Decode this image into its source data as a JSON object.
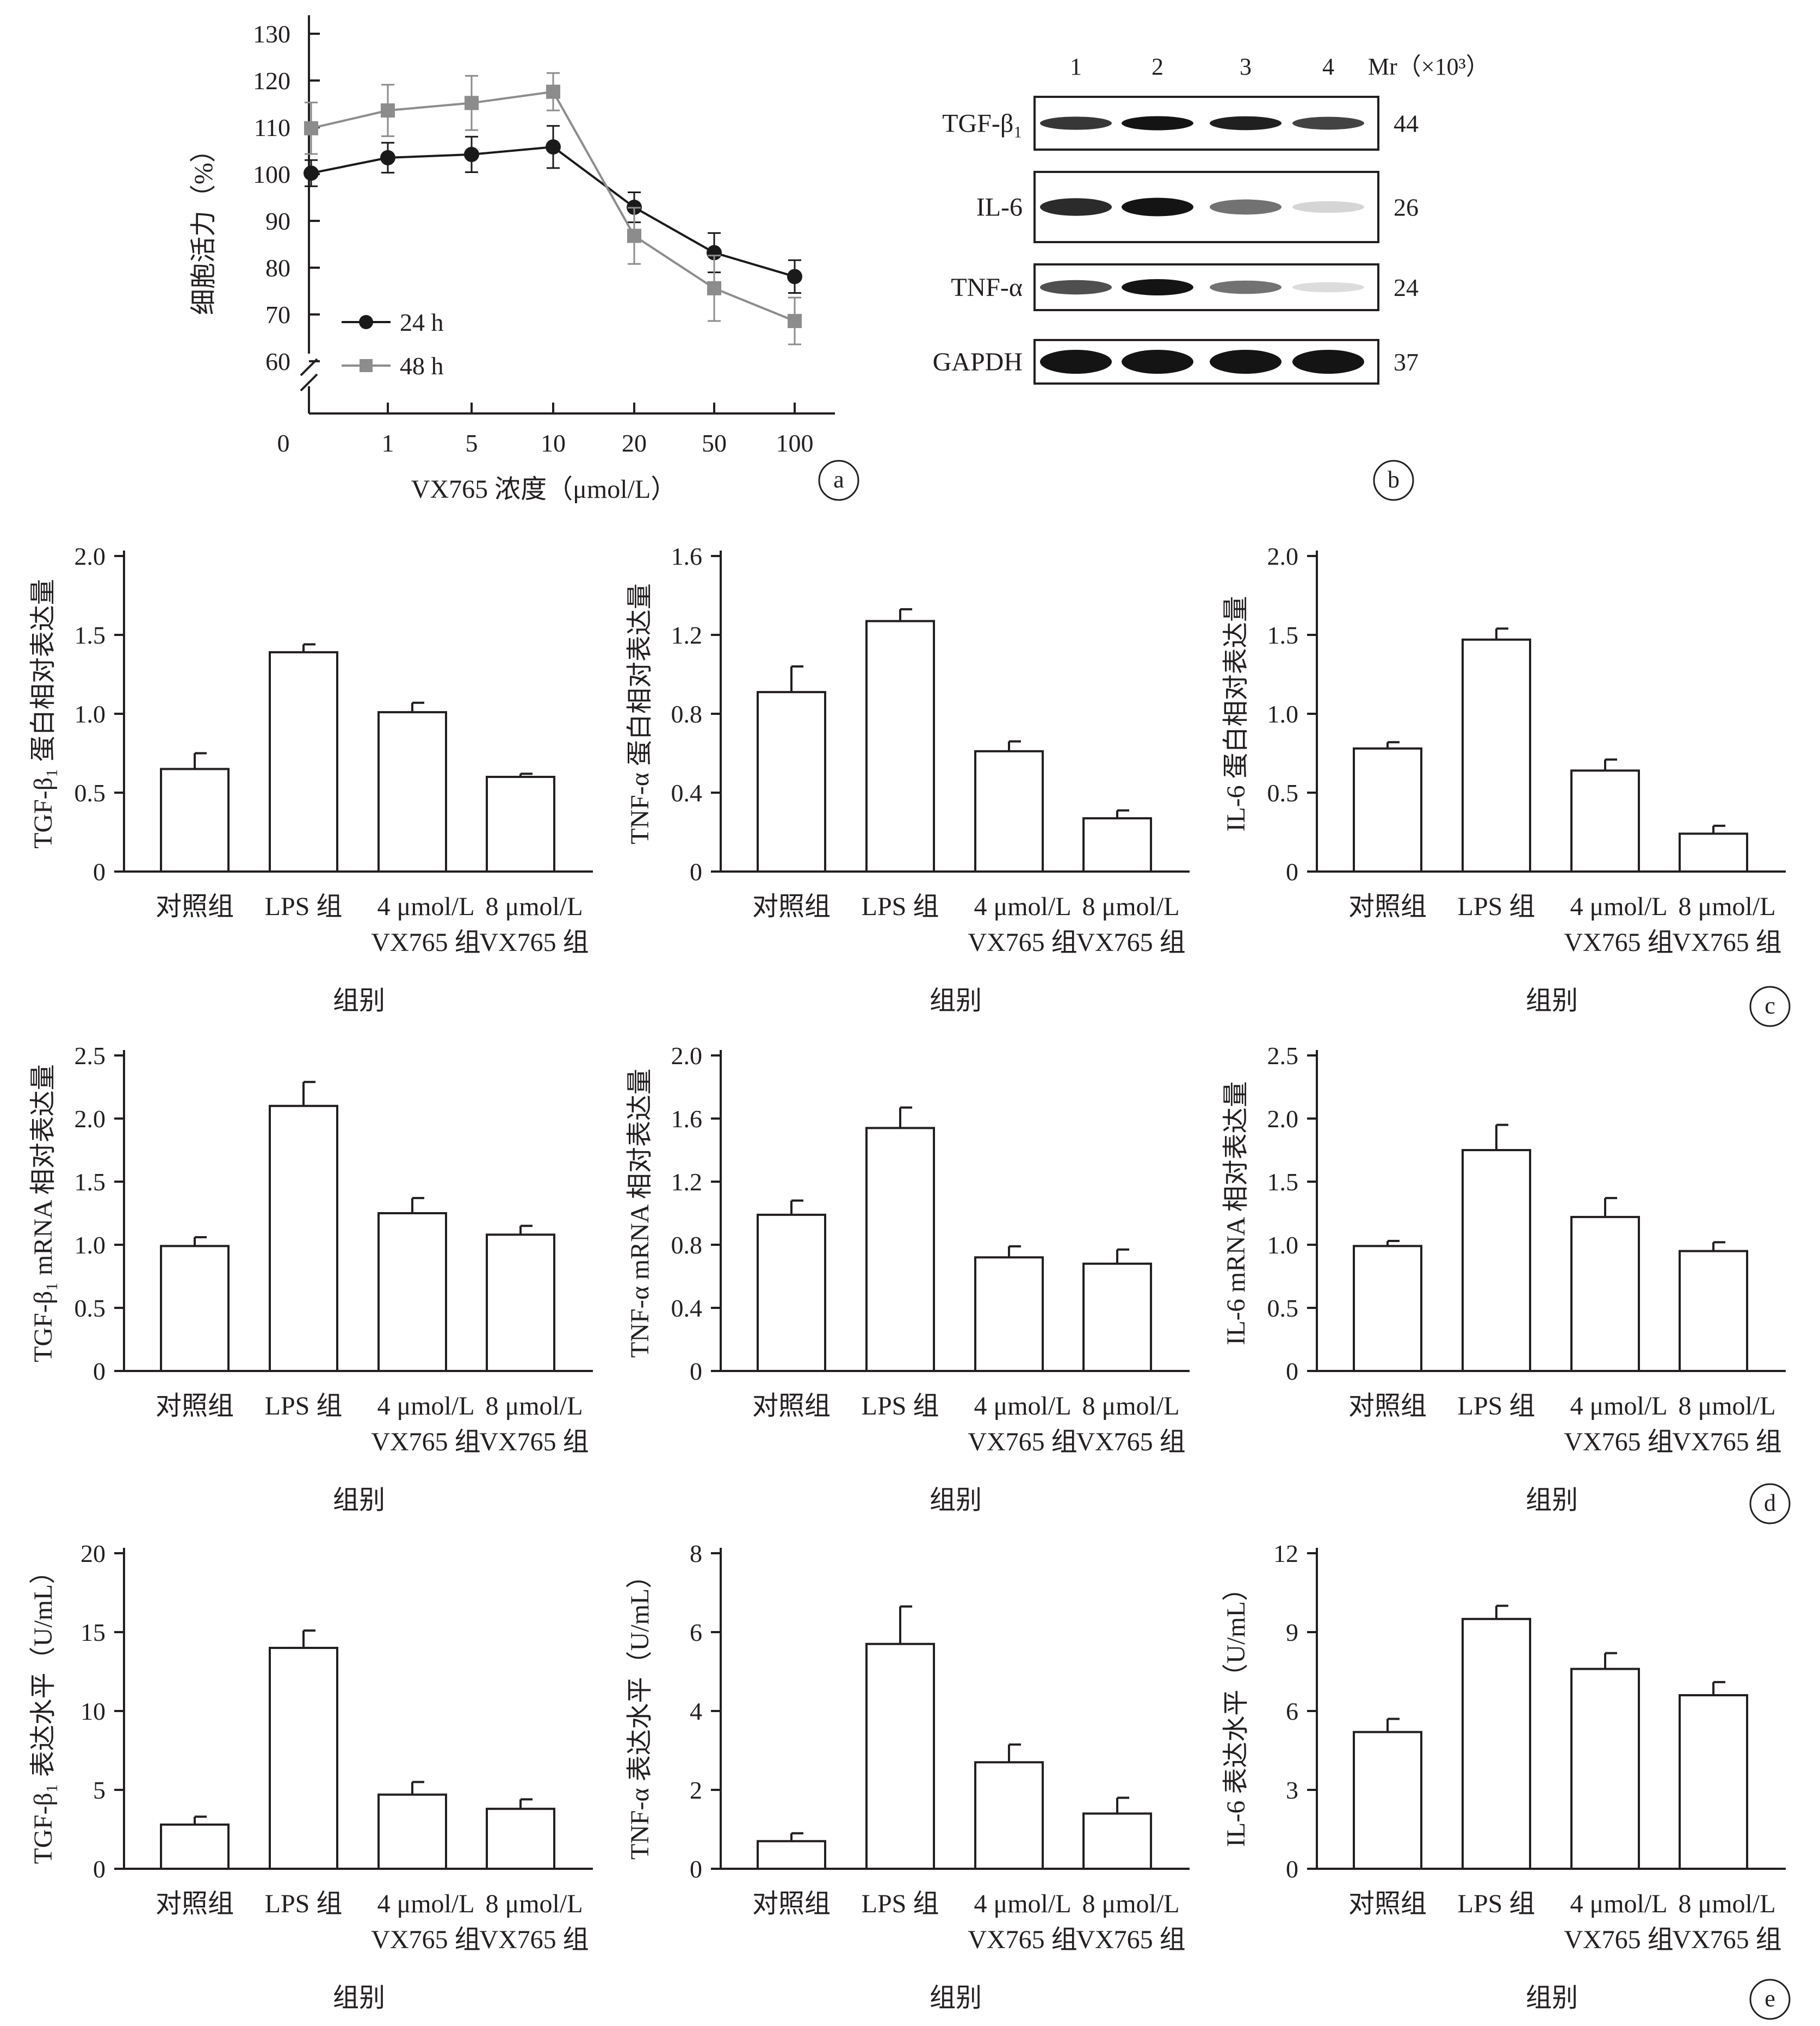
{
  "panel_labels": [
    "a",
    "b",
    "c",
    "d",
    "e"
  ],
  "colors": {
    "ink": "#231f20",
    "series_24h": "#1a1a1a",
    "series_48h": "#8c8c8c",
    "band": "#141414"
  },
  "chart_data": [
    {
      "id": "a",
      "type": "line",
      "ylabel": "细胞活力（%）",
      "xlabel": "VX765 浓度（μmol/L）",
      "categories": [
        "0",
        "1",
        "5",
        "10",
        "20",
        "50",
        "100"
      ],
      "ylim": [
        60,
        130
      ],
      "yticks": [
        60,
        70,
        80,
        90,
        100,
        110,
        120,
        130
      ],
      "y_axis_break": true,
      "legend_position": "bottom-left",
      "series": [
        {
          "name": "24 h",
          "marker": "circle",
          "color": "#1a1a1a",
          "values": [
            100.2,
            103.5,
            104.2,
            105.8,
            92.9,
            83.2,
            78.1
          ],
          "errors": [
            2.8,
            3.2,
            3.8,
            4.5,
            3.2,
            4.2,
            3.5
          ]
        },
        {
          "name": "48 h",
          "marker": "square",
          "color": "#8c8c8c",
          "values": [
            109.8,
            113.6,
            115.2,
            117.6,
            86.8,
            75.6,
            68.6
          ],
          "errors": [
            5.5,
            5.5,
            5.8,
            4.0,
            6.0,
            7.0,
            5.0
          ]
        }
      ]
    },
    {
      "id": "c1",
      "type": "bar",
      "ylabel": "TGF-β₁ 蛋白相对表达量",
      "xlabel": "组别",
      "ylim": [
        0,
        2.0
      ],
      "yticks": [
        "0",
        "0.5",
        "1.0",
        "1.5",
        "2.0"
      ],
      "values": [
        0.65,
        1.39,
        1.01,
        0.6
      ],
      "errors": [
        0.1,
        0.05,
        0.06,
        0.02
      ]
    },
    {
      "id": "c2",
      "type": "bar",
      "ylabel": "TNF-α 蛋白相对表达量",
      "xlabel": "组别",
      "ylim": [
        0,
        1.6
      ],
      "yticks": [
        "0",
        "0.4",
        "0.8",
        "1.2",
        "1.6"
      ],
      "values": [
        0.91,
        1.27,
        0.61,
        0.27
      ],
      "errors": [
        0.13,
        0.06,
        0.05,
        0.04
      ]
    },
    {
      "id": "c3",
      "type": "bar",
      "ylabel": "IL-6 蛋白相对表达量",
      "xlabel": "组别",
      "ylim": [
        0,
        2.0
      ],
      "yticks": [
        "0",
        "0.5",
        "1.0",
        "1.5",
        "2.0"
      ],
      "values": [
        0.78,
        1.47,
        0.64,
        0.24
      ],
      "errors": [
        0.04,
        0.07,
        0.07,
        0.05
      ]
    },
    {
      "id": "d1",
      "type": "bar",
      "ylabel": "TGF-β₁ mRNA 相对表达量",
      "xlabel": "组别",
      "ylim": [
        0,
        2.5
      ],
      "yticks": [
        "0",
        "0.5",
        "1.0",
        "1.5",
        "2.0",
        "2.5"
      ],
      "values": [
        0.99,
        2.1,
        1.25,
        1.08
      ],
      "errors": [
        0.07,
        0.19,
        0.12,
        0.07
      ]
    },
    {
      "id": "d2",
      "type": "bar",
      "ylabel": "TNF-α mRNA 相对表达量",
      "xlabel": "组别",
      "ylim": [
        0,
        2.0
      ],
      "yticks": [
        "0",
        "0.4",
        "0.8",
        "1.2",
        "1.6",
        "2.0"
      ],
      "values": [
        0.99,
        1.54,
        0.72,
        0.68
      ],
      "errors": [
        0.09,
        0.13,
        0.07,
        0.09
      ]
    },
    {
      "id": "d3",
      "type": "bar",
      "ylabel": "IL-6 mRNA 相对表达量",
      "xlabel": "组别",
      "ylim": [
        0,
        2.5
      ],
      "yticks": [
        "0",
        "0.5",
        "1.0",
        "1.5",
        "2.0",
        "2.5"
      ],
      "values": [
        0.99,
        1.75,
        1.22,
        0.95
      ],
      "errors": [
        0.04,
        0.2,
        0.15,
        0.07
      ]
    },
    {
      "id": "e1",
      "type": "bar",
      "ylabel": "TGF-β₁ 表达水平（U/mL）",
      "xlabel": "组别",
      "ylim": [
        0,
        20
      ],
      "yticks": [
        "0",
        "5",
        "10",
        "15",
        "20"
      ],
      "values": [
        2.8,
        14.0,
        4.7,
        3.8
      ],
      "errors": [
        0.5,
        1.1,
        0.8,
        0.6
      ]
    },
    {
      "id": "e2",
      "type": "bar",
      "ylabel": "TNF-α 表达水平（U/mL）",
      "xlabel": "组别",
      "ylim": [
        0,
        8
      ],
      "yticks": [
        "0",
        "2",
        "4",
        "6",
        "8"
      ],
      "values": [
        0.7,
        5.7,
        2.7,
        1.4
      ],
      "errors": [
        0.2,
        0.95,
        0.45,
        0.4
      ]
    },
    {
      "id": "e3",
      "type": "bar",
      "ylabel": "IL-6 表达水平（U/mL）",
      "xlabel": "组别",
      "ylim": [
        0,
        12
      ],
      "yticks": [
        "0",
        "3",
        "6",
        "9",
        "12"
      ],
      "values": [
        5.2,
        9.5,
        7.6,
        6.6
      ],
      "errors": [
        0.5,
        0.5,
        0.6,
        0.5
      ]
    }
  ],
  "bar_group_labels": [
    [
      "对照组"
    ],
    [
      "LPS 组"
    ],
    [
      "4 μmol/L",
      "VX765 组"
    ],
    [
      "8 μmol/L",
      "VX765 组"
    ]
  ],
  "western_blot": {
    "lanes": [
      "1",
      "2",
      "3",
      "4"
    ],
    "mr_header": "Mr（×10³）",
    "rows": [
      {
        "label": "TGF-β₁",
        "mr": "44",
        "intensity": [
          0.85,
          1.0,
          0.95,
          0.8
        ]
      },
      {
        "label": "IL-6",
        "mr": "26",
        "intensity": [
          0.9,
          1.0,
          0.6,
          0.18
        ]
      },
      {
        "label": "TNF-α",
        "mr": "24",
        "intensity": [
          0.75,
          1.0,
          0.6,
          0.15
        ]
      },
      {
        "label": "GAPDH",
        "mr": "37",
        "intensity": [
          1.0,
          1.0,
          1.0,
          1.0
        ]
      }
    ]
  }
}
